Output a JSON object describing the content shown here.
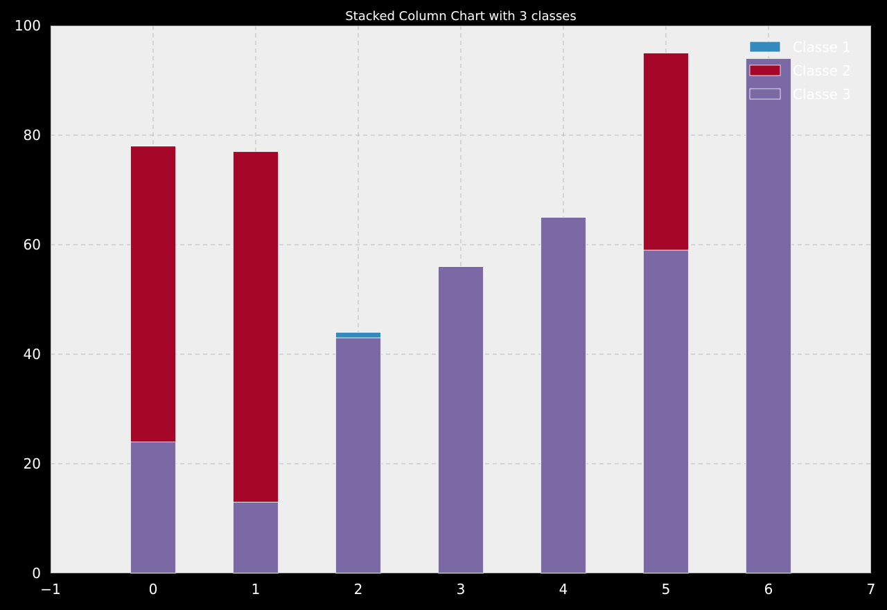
{
  "chart_data": {
    "type": "bar",
    "stacked": true,
    "title": "Stacked Column Chart with 3 classes",
    "xlabel": "",
    "ylabel": "",
    "x": [
      0,
      1,
      2,
      3,
      4,
      5,
      6
    ],
    "xlim": [
      -1,
      7
    ],
    "ylim": [
      0,
      100
    ],
    "x_ticks": [
      "−1",
      "0",
      "1",
      "2",
      "3",
      "4",
      "5",
      "6",
      "7"
    ],
    "y_ticks": [
      "0",
      "20",
      "40",
      "60",
      "80",
      "100"
    ],
    "grid": true,
    "legend_position": "top-right",
    "series": [
      {
        "name": "Classe 3",
        "color": "#7b69a6",
        "values": [
          24,
          13,
          43,
          56,
          65,
          59,
          94
        ]
      },
      {
        "name": "Classe 2",
        "color": "#a60628",
        "values": [
          54,
          64,
          0,
          0,
          0,
          36,
          0
        ]
      },
      {
        "name": "Classe 1",
        "color": "#348abd",
        "values": [
          0,
          0,
          1,
          0,
          0,
          0,
          0
        ]
      }
    ],
    "legend_order": [
      "Classe 1",
      "Classe 2",
      "Classe 3"
    ],
    "colors": {
      "figure_bg": "#000000",
      "plot_bg": "#eeeeee",
      "text": "#ffffff"
    }
  }
}
